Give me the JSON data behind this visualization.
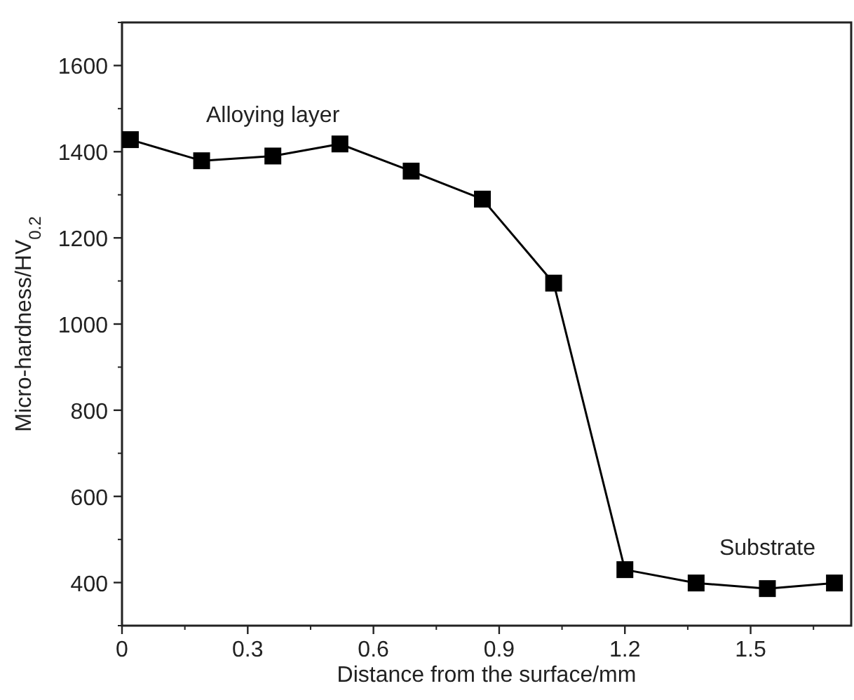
{
  "chart_data": {
    "type": "line",
    "xlabel": "Distance from the surface/mm",
    "ylabel": "Micro-hardness/HV$_{0.2}$",
    "x": [
      0.02,
      0.19,
      0.36,
      0.52,
      0.69,
      0.86,
      1.03,
      1.2,
      1.37,
      1.54,
      1.7
    ],
    "series": [
      {
        "color": "#000000",
        "values": [
          1428,
          1379,
          1390,
          1418,
          1355,
          1290,
          1095,
          430,
          399,
          386,
          399
        ]
      }
    ],
    "xlim": [
      0,
      1.74
    ],
    "xticks": [
      0,
      0.3,
      0.6,
      0.9,
      1.2,
      1.5
    ],
    "ylim": [
      300,
      1700
    ],
    "yticks": [
      400,
      600,
      800,
      1000,
      1200,
      1400,
      1600
    ],
    "marker": "square",
    "line_style": "solid",
    "annotations": [
      {
        "text": "Alloying layer",
        "x": 0.36,
        "y": 1390
      },
      {
        "text": "Substrate",
        "x": 1.54,
        "y": 386
      }
    ]
  }
}
